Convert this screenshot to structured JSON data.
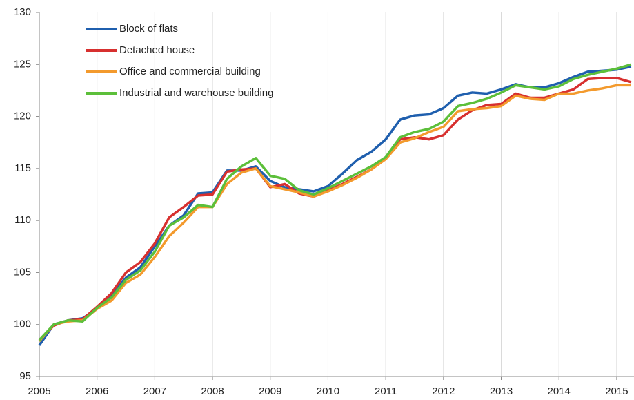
{
  "chart_data": {
    "type": "line",
    "x": [
      2005,
      2005.25,
      2005.5,
      2005.75,
      2006,
      2006.25,
      2006.5,
      2006.75,
      2007,
      2007.25,
      2007.5,
      2007.75,
      2008,
      2008.25,
      2008.5,
      2008.75,
      2009,
      2009.25,
      2009.5,
      2009.75,
      2010,
      2010.25,
      2010.5,
      2010.75,
      2011,
      2011.25,
      2011.5,
      2011.75,
      2012,
      2012.25,
      2012.5,
      2012.75,
      2013,
      2013.25,
      2013.5,
      2013.75,
      2014,
      2014.25,
      2014.5,
      2014.75,
      2015,
      2015.25
    ],
    "series": [
      {
        "name": "Block of flats",
        "color": "#1f5fae",
        "values": [
          98.0,
          100.0,
          100.4,
          100.6,
          101.5,
          102.8,
          104.5,
          105.5,
          107.5,
          109.5,
          110.5,
          112.6,
          112.7,
          114.8,
          114.8,
          115.2,
          113.8,
          113.2,
          113.0,
          112.8,
          113.3,
          114.5,
          115.8,
          116.6,
          117.8,
          119.7,
          120.1,
          120.2,
          120.8,
          122.0,
          122.3,
          122.2,
          122.6,
          123.1,
          122.8,
          122.8,
          123.2,
          123.8,
          124.3,
          124.4,
          124.5,
          124.8
        ]
      },
      {
        "name": "Detached house",
        "color": "#d7302f",
        "values": [
          98.5,
          99.9,
          100.4,
          100.5,
          101.7,
          103.0,
          105.0,
          106.0,
          107.8,
          110.3,
          111.3,
          112.4,
          112.5,
          114.7,
          114.9,
          115.0,
          113.2,
          113.5,
          112.6,
          112.3,
          112.9,
          113.5,
          114.2,
          114.9,
          116.0,
          117.8,
          118.0,
          117.8,
          118.2,
          119.7,
          120.6,
          121.1,
          121.2,
          122.2,
          121.8,
          121.8,
          122.2,
          122.6,
          123.6,
          123.7,
          123.7,
          123.3
        ]
      },
      {
        "name": "Office and commercial building",
        "color": "#f39a2d",
        "values": [
          98.4,
          100.0,
          100.3,
          100.4,
          101.5,
          102.3,
          104.0,
          104.8,
          106.5,
          108.5,
          109.8,
          111.3,
          111.3,
          113.5,
          114.6,
          115.0,
          113.3,
          113.0,
          112.7,
          112.3,
          112.8,
          113.4,
          114.1,
          114.9,
          115.9,
          117.5,
          117.9,
          118.5,
          119.0,
          120.5,
          120.7,
          120.8,
          121.0,
          122.0,
          121.7,
          121.6,
          122.2,
          122.2,
          122.5,
          122.7,
          123.0,
          123.0
        ]
      },
      {
        "name": "Industrial and warehouse building",
        "color": "#5cbf3a",
        "values": [
          98.5,
          100.0,
          100.4,
          100.3,
          101.6,
          102.6,
          104.3,
          105.2,
          107.0,
          109.5,
          110.3,
          111.5,
          111.3,
          114.0,
          115.2,
          116.0,
          114.3,
          114.0,
          112.9,
          112.5,
          113.1,
          113.8,
          114.5,
          115.2,
          116.1,
          118.0,
          118.5,
          118.8,
          119.5,
          121.0,
          121.3,
          121.7,
          122.3,
          123.0,
          122.8,
          122.6,
          122.9,
          123.6,
          124.0,
          124.3,
          124.6,
          125.0
        ]
      }
    ],
    "xlim": [
      2005,
      2015.3
    ],
    "xticks": [
      2005,
      2006,
      2007,
      2008,
      2009,
      2010,
      2011,
      2012,
      2013,
      2014,
      2015
    ],
    "ylim": [
      95,
      130
    ],
    "yticks": [
      95,
      100,
      105,
      110,
      115,
      120,
      125,
      130
    ],
    "grid": "x",
    "legend": "upper-left"
  }
}
